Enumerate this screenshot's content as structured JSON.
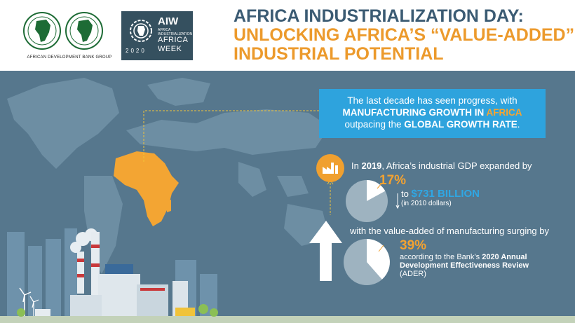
{
  "header": {
    "afdb_caption": "AFRICAN DEVELOPMENT BANK GROUP",
    "aiw": {
      "title": "AIW",
      "subtitle_line1": "AFRICA",
      "subtitle_line2": "INDUSTRIALIZATION",
      "africa": "AFRICA",
      "week": "WEEK",
      "year": "2020"
    },
    "headline": {
      "line1": "AFRICA INDUSTRIALIZATION DAY:",
      "line2": "UNLOCKING AFRICA’S “VALUE-ADDED”",
      "line3": "INDUSTRIAL POTENTIAL"
    }
  },
  "callout": {
    "p1": "The last decade has seen progress, with",
    "p2a": "MANUFACTURING GROWTH IN ",
    "p2b": "AFRICA",
    "p3a": "outpacing the ",
    "p3b": "GLOBAL GROWTH RATE",
    "p3c": "."
  },
  "stat1": {
    "in": "In ",
    "year": "2019",
    "rest": ", Africa’s industrial GDP expanded by",
    "percent": "17%",
    "to": "to ",
    "amount": "$731 BILLION",
    "note": "(in 2010 dollars)"
  },
  "stat2": {
    "text": "with the value-added of manufacturing surging by",
    "percent": "39%",
    "line1": "according to the Bank’s ",
    "line1b": "2020 Annual",
    "line2": "Development Effectiveness Review",
    "line3": "(ADER)"
  },
  "colors": {
    "accent_orange": "#f0a02f",
    "accent_blue": "#2ea3dd",
    "background": "#56778d",
    "headline_blue": "#3b5b73"
  }
}
